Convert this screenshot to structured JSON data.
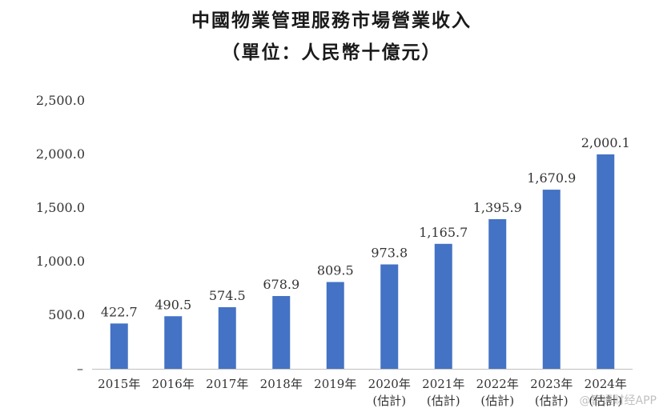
{
  "chart_data": {
    "type": "bar",
    "title": "中國物業管理服務市場營業收入",
    "subtitle": "（單位：人民幣十億元）",
    "categories": [
      "2015年",
      "2016年",
      "2017年",
      "2018年",
      "2019年",
      "2020年",
      "2021年",
      "2022年",
      "2023年",
      "2024年"
    ],
    "category_notes": [
      "",
      "",
      "",
      "",
      "",
      "(估計)",
      "(估計)",
      "(估計)",
      "(估計)",
      "(估計)"
    ],
    "values": [
      422.7,
      490.5,
      574.5,
      678.9,
      809.5,
      973.8,
      1165.7,
      1395.9,
      1670.9,
      2000.1
    ],
    "value_labels": [
      "422.7",
      "490.5",
      "574.5",
      "678.9",
      "809.5",
      "973.8",
      "1,165.7",
      "1,395.9",
      "1,670.9",
      "2,000.1"
    ],
    "ylim": [
      0,
      2500
    ],
    "yticks": [
      500,
      1000,
      1500,
      2000,
      2500
    ],
    "ytick_labels": [
      "500.0",
      "1,000.0",
      "1,500.0",
      "2,000.0",
      "2,500.0"
    ],
    "y_zero_label": "–",
    "xlabel": "",
    "ylabel": "",
    "grid": false,
    "bar_color": "#4472c4"
  },
  "watermark": "@智通财经APP"
}
